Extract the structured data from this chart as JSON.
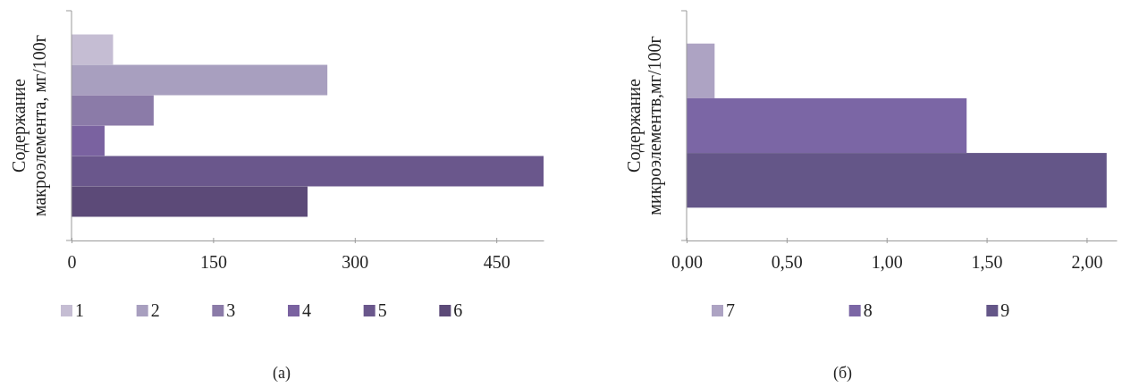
{
  "chart_data": [
    {
      "type": "bar",
      "orientation": "horizontal",
      "categories": [
        null
      ],
      "ylabel": "Содержание макроэлемента, мг/100г",
      "xlim": [
        0,
        500
      ],
      "xticks": [
        0,
        150,
        300,
        450
      ],
      "legend": "bottom",
      "annotations": [
        "(a)"
      ],
      "series": [
        {
          "name": "1",
          "color": "#c5bdd3",
          "values": [
            44
          ]
        },
        {
          "name": "2",
          "color": "#a89fbf",
          "values": [
            271
          ]
        },
        {
          "name": "3",
          "color": "#8b7ba8",
          "values": [
            87
          ]
        },
        {
          "name": "4",
          "color": "#7a62a0",
          "values": [
            35
          ]
        },
        {
          "name": "5",
          "color": "#6a578c",
          "values": [
            500
          ]
        },
        {
          "name": "6",
          "color": "#5c4a78",
          "values": [
            250
          ]
        }
      ]
    },
    {
      "type": "bar",
      "orientation": "horizontal",
      "categories": [
        null
      ],
      "ylabel": "Содержание микроэлементв,мг/100г",
      "xlim": [
        0,
        2.15
      ],
      "xticks": [
        {
          "value": 0,
          "label": "0,00"
        },
        {
          "value": 0.5,
          "label": "0,50"
        },
        {
          "value": 1,
          "label": "1,00"
        },
        {
          "value": 1.5,
          "label": "1,50"
        },
        {
          "value": 2,
          "label": "2,00"
        }
      ],
      "legend": "bottom",
      "annotations": [
        "(б)"
      ],
      "series": [
        {
          "name": "7",
          "color": "#ada3c3",
          "values": [
            0.14
          ]
        },
        {
          "name": "8",
          "color": "#7b66a5",
          "values": [
            1.4
          ]
        },
        {
          "name": "9",
          "color": "#645688",
          "values": [
            2.1
          ]
        }
      ]
    }
  ]
}
